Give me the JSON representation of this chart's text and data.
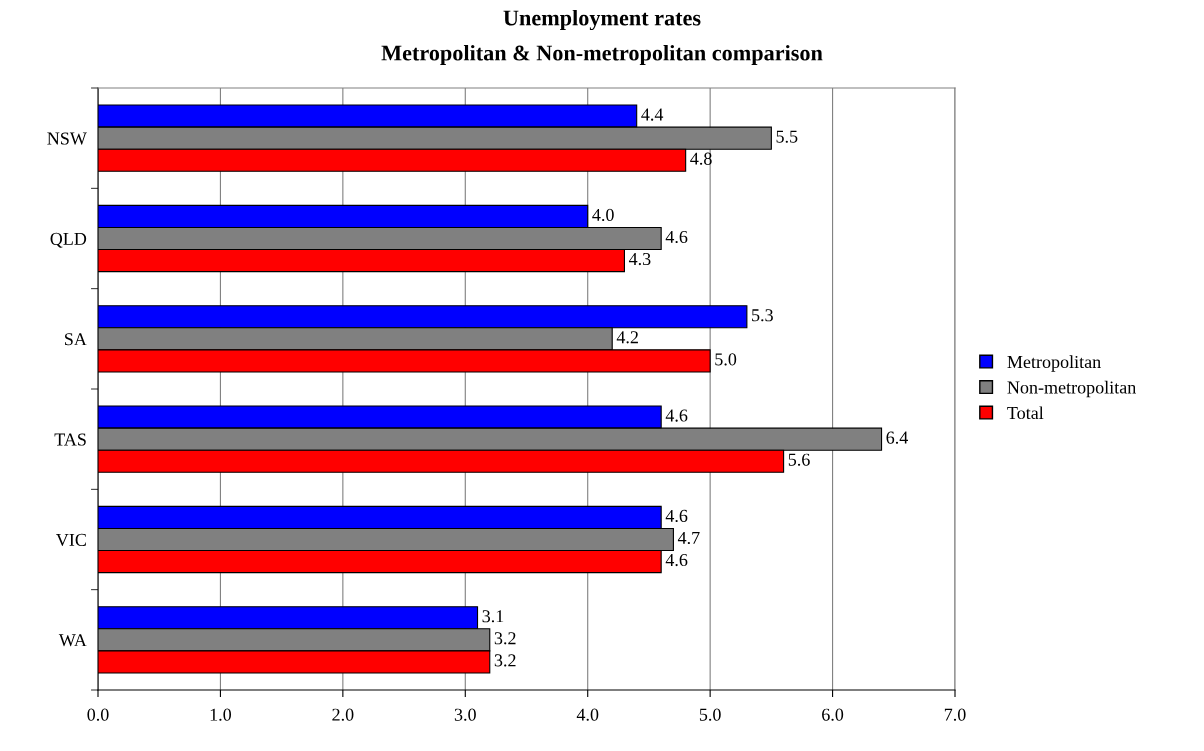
{
  "chart_data": {
    "type": "bar",
    "orientation": "horizontal",
    "title": "Unemployment rates",
    "subtitle": "Metropolitan & Non-metropolitan comparison",
    "categories": [
      "NSW",
      "QLD",
      "SA",
      "TAS",
      "VIC",
      "WA"
    ],
    "series": [
      {
        "name": "Metropolitan",
        "color": "#0000ff",
        "values": [
          4.4,
          4.0,
          5.3,
          4.6,
          4.6,
          3.1
        ],
        "value_labels": [
          "4.4",
          "4.0",
          "5.3",
          "4.6",
          "4.6",
          "3.1"
        ]
      },
      {
        "name": "Non-metropolitan",
        "color": "#808080",
        "values": [
          5.5,
          4.6,
          4.2,
          6.4,
          4.7,
          3.2
        ],
        "value_labels": [
          "5.5",
          "4.6",
          "4.2",
          "6.4",
          "4.7",
          "3.2"
        ]
      },
      {
        "name": "Total",
        "color": "#ff0000",
        "values": [
          4.8,
          4.3,
          5.0,
          5.6,
          4.6,
          3.2
        ],
        "value_labels": [
          "4.8",
          "4.3",
          "5.0",
          "5.6",
          "4.6",
          "3.2"
        ]
      }
    ],
    "xlim": [
      0,
      7
    ],
    "xticks": [
      {
        "value": 0,
        "label": "0.0"
      },
      {
        "value": 1,
        "label": "1.0"
      },
      {
        "value": 2,
        "label": "2.0"
      },
      {
        "value": 3,
        "label": "3.0"
      },
      {
        "value": 4,
        "label": "4.0"
      },
      {
        "value": 5,
        "label": "5.0"
      },
      {
        "value": 6,
        "label": "6.0"
      },
      {
        "value": 7,
        "label": "7.0"
      }
    ],
    "grid": "x",
    "legend": "right"
  }
}
